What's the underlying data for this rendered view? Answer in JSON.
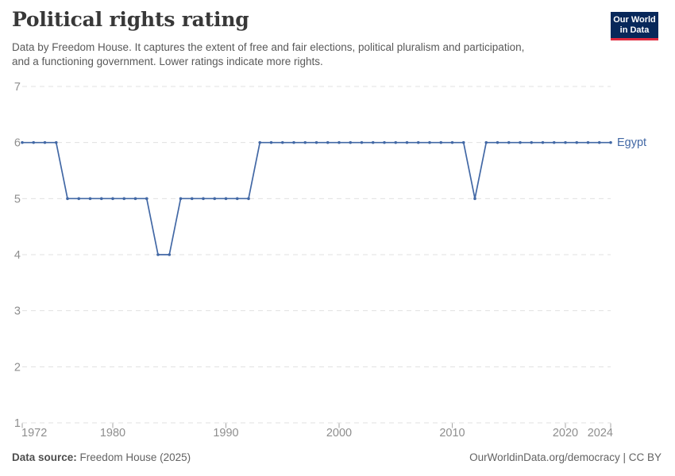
{
  "header": {
    "logo": {
      "line1": "Our World",
      "line2": "in Data",
      "bg_color": "#08285a",
      "accent_color": "#e0293e"
    }
  },
  "chart_data": {
    "type": "line",
    "title": "Political rights rating",
    "subtitle": "Data by Freedom House. It captures the extent of free and fair elections, political pluralism and participation,\nand a functioning government. Lower ratings indicate more rights.",
    "x": [
      1972,
      1973,
      1974,
      1975,
      1976,
      1977,
      1978,
      1979,
      1980,
      1981,
      1982,
      1983,
      1984,
      1985,
      1986,
      1987,
      1988,
      1989,
      1990,
      1991,
      1992,
      1993,
      1994,
      1995,
      1996,
      1997,
      1998,
      1999,
      2000,
      2001,
      2002,
      2003,
      2004,
      2005,
      2006,
      2007,
      2008,
      2009,
      2010,
      2011,
      2012,
      2013,
      2014,
      2015,
      2016,
      2017,
      2018,
      2019,
      2020,
      2021,
      2022,
      2023,
      2024
    ],
    "series": [
      {
        "name": "Egypt",
        "color": "#4268a5",
        "values": [
          6,
          6,
          6,
          6,
          5,
          5,
          5,
          5,
          5,
          5,
          5,
          5,
          4,
          4,
          5,
          5,
          5,
          5,
          5,
          5,
          5,
          6,
          6,
          6,
          6,
          6,
          6,
          6,
          6,
          6,
          6,
          6,
          6,
          6,
          6,
          6,
          6,
          6,
          6,
          6,
          5,
          6,
          6,
          6,
          6,
          6,
          6,
          6,
          6,
          6,
          6,
          6,
          6
        ]
      }
    ],
    "xlabel": "",
    "ylabel": "",
    "ylim": [
      1,
      7
    ],
    "xlim": [
      1972,
      2024
    ],
    "y_ticks": [
      1,
      2,
      3,
      4,
      5,
      6,
      7
    ],
    "x_ticks": [
      1972,
      1980,
      1990,
      2000,
      2010,
      2020,
      2024
    ],
    "grid": "horizontal dashed",
    "legend_position": "line-end label"
  },
  "footer": {
    "source_label": "Data source:",
    "source_text": "Freedom House (2025)",
    "attribution": "OurWorldinData.org/democracy | CC BY"
  }
}
